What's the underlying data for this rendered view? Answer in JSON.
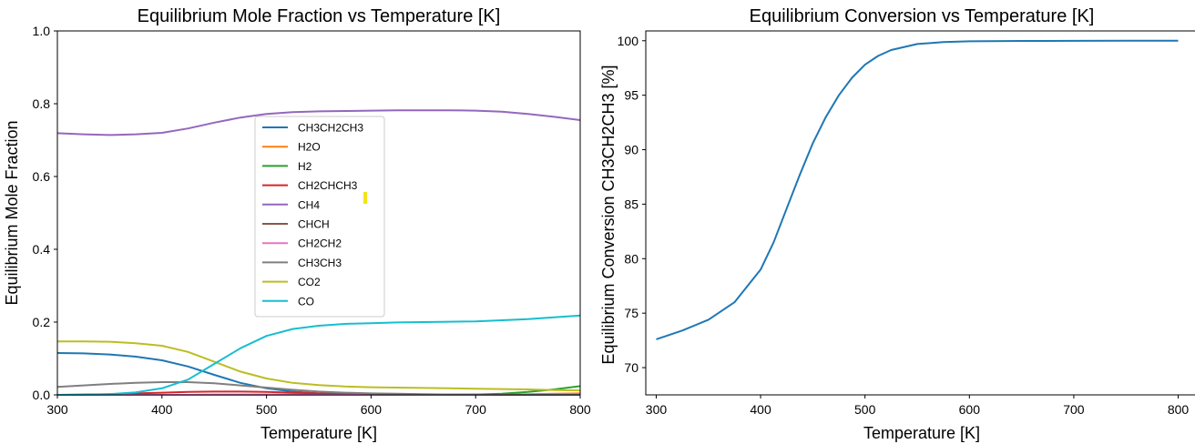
{
  "chart_data": [
    {
      "type": "line",
      "title": "Equilibrium Mole Fraction vs Temperature [K]",
      "xlabel": "Temperature [K]",
      "ylabel": "Equilibrium Mole Fraction",
      "xlim": [
        300,
        800
      ],
      "ylim": [
        0,
        1.0
      ],
      "xticks": [
        "300",
        "400",
        "500",
        "600",
        "700",
        "800"
      ],
      "yticks": [
        "0.0",
        "0.2",
        "0.4",
        "0.6",
        "0.8",
        "1.0"
      ],
      "grid": false,
      "legend_position": "center",
      "x": [
        300,
        325,
        350,
        375,
        400,
        425,
        450,
        475,
        500,
        525,
        550,
        575,
        600,
        625,
        650,
        675,
        700,
        725,
        750,
        775,
        800
      ],
      "series": [
        {
          "name": "CH3CH2CH3",
          "color": "#1f77b4",
          "values": [
            0.115,
            0.114,
            0.111,
            0.105,
            0.095,
            0.078,
            0.055,
            0.033,
            0.018,
            0.009,
            0.004,
            0.002,
            0.001,
            0.0005,
            0.0003,
            0.0002,
            0.0001,
            0.0001,
            0.0,
            0.0,
            0.0
          ]
        },
        {
          "name": "H2O",
          "color": "#ff7f0e",
          "values": [
            0.0,
            0.0,
            0.0,
            0.0,
            0.0,
            0.0,
            0.001,
            0.001,
            0.001,
            0.001,
            0.001,
            0.001,
            0.001,
            0.001,
            0.001,
            0.001,
            0.001,
            0.001,
            0.002,
            0.003,
            0.004
          ]
        },
        {
          "name": "H2",
          "color": "#2ca02c",
          "values": [
            0.0,
            0.0,
            0.0,
            0.0,
            0.0,
            0.0,
            0.0,
            0.0,
            0.0,
            0.0,
            0.0,
            0.0,
            0.0,
            0.0,
            0.0,
            0.0,
            0.001,
            0.003,
            0.008,
            0.015,
            0.024
          ]
        },
        {
          "name": "CH2CHCH3",
          "color": "#d62728",
          "values": [
            0.0,
            0.001,
            0.002,
            0.004,
            0.006,
            0.008,
            0.009,
            0.009,
            0.008,
            0.006,
            0.004,
            0.003,
            0.002,
            0.001,
            0.001,
            0.0,
            0.0,
            0.0,
            0.0,
            0.0,
            0.0
          ]
        },
        {
          "name": "CH4",
          "color": "#9467bd",
          "values": [
            0.719,
            0.716,
            0.714,
            0.716,
            0.72,
            0.732,
            0.748,
            0.762,
            0.772,
            0.777,
            0.779,
            0.78,
            0.781,
            0.782,
            0.782,
            0.782,
            0.781,
            0.778,
            0.772,
            0.764,
            0.755
          ]
        },
        {
          "name": "CHCH",
          "color": "#8c564b",
          "values": [
            0.0,
            0.0,
            0.0,
            0.0,
            0.0,
            0.0,
            0.0,
            0.0,
            0.0,
            0.0,
            0.0,
            0.0,
            0.0,
            0.0,
            0.0,
            0.0,
            0.0,
            0.0,
            0.0,
            0.0,
            0.0
          ]
        },
        {
          "name": "CH2CH2",
          "color": "#e377c2",
          "values": [
            0.0,
            0.0,
            0.0,
            0.0,
            0.0,
            0.0,
            0.0,
            0.0,
            0.0,
            0.0,
            0.0,
            0.0,
            0.0,
            0.0,
            0.0,
            0.0,
            0.0,
            0.0,
            0.0,
            0.0,
            0.0
          ]
        },
        {
          "name": "CH3CH3",
          "color": "#7f7f7f",
          "values": [
            0.022,
            0.026,
            0.03,
            0.033,
            0.035,
            0.035,
            0.032,
            0.026,
            0.02,
            0.014,
            0.009,
            0.006,
            0.004,
            0.003,
            0.002,
            0.001,
            0.001,
            0.0,
            0.0,
            0.0,
            0.0
          ]
        },
        {
          "name": "CO2",
          "color": "#bcbd22",
          "values": [
            0.147,
            0.147,
            0.146,
            0.142,
            0.135,
            0.118,
            0.091,
            0.064,
            0.045,
            0.033,
            0.027,
            0.023,
            0.021,
            0.02,
            0.019,
            0.018,
            0.017,
            0.016,
            0.015,
            0.013,
            0.012
          ]
        },
        {
          "name": "CO",
          "color": "#17becf",
          "values": [
            0.0,
            0.0,
            0.002,
            0.007,
            0.018,
            0.042,
            0.085,
            0.128,
            0.162,
            0.181,
            0.19,
            0.195,
            0.197,
            0.199,
            0.2,
            0.201,
            0.202,
            0.205,
            0.208,
            0.213,
            0.218
          ]
        }
      ],
      "marker": {
        "color": "#f5e31a"
      }
    },
    {
      "type": "line",
      "title": "Equilibrium Conversion vs Temperature [K]",
      "xlabel": "Temperature [K]",
      "ylabel": "Equilibrium Conversion CH3CH2CH3 [%]",
      "xlim": [
        290,
        810
      ],
      "ylim": [
        67.5,
        100.9
      ],
      "xticks": [
        "300",
        "400",
        "500",
        "600",
        "700",
        "800"
      ],
      "yticks": [
        "70",
        "75",
        "80",
        "85",
        "90",
        "95",
        "100"
      ],
      "grid": false,
      "x": [
        300,
        325,
        350,
        375,
        400,
        412.5,
        425,
        437.5,
        450,
        462.5,
        475,
        487.5,
        500,
        512.5,
        525,
        550,
        575,
        600,
        650,
        700,
        750,
        800
      ],
      "series": [
        {
          "name": "",
          "color": "#1f77b4",
          "values": [
            72.6,
            73.4,
            74.4,
            76.0,
            79.0,
            81.5,
            84.6,
            87.7,
            90.6,
            93.0,
            95.0,
            96.6,
            97.8,
            98.6,
            99.15,
            99.7,
            99.88,
            99.95,
            99.98,
            99.99,
            100.0,
            100.0
          ]
        }
      ]
    }
  ]
}
